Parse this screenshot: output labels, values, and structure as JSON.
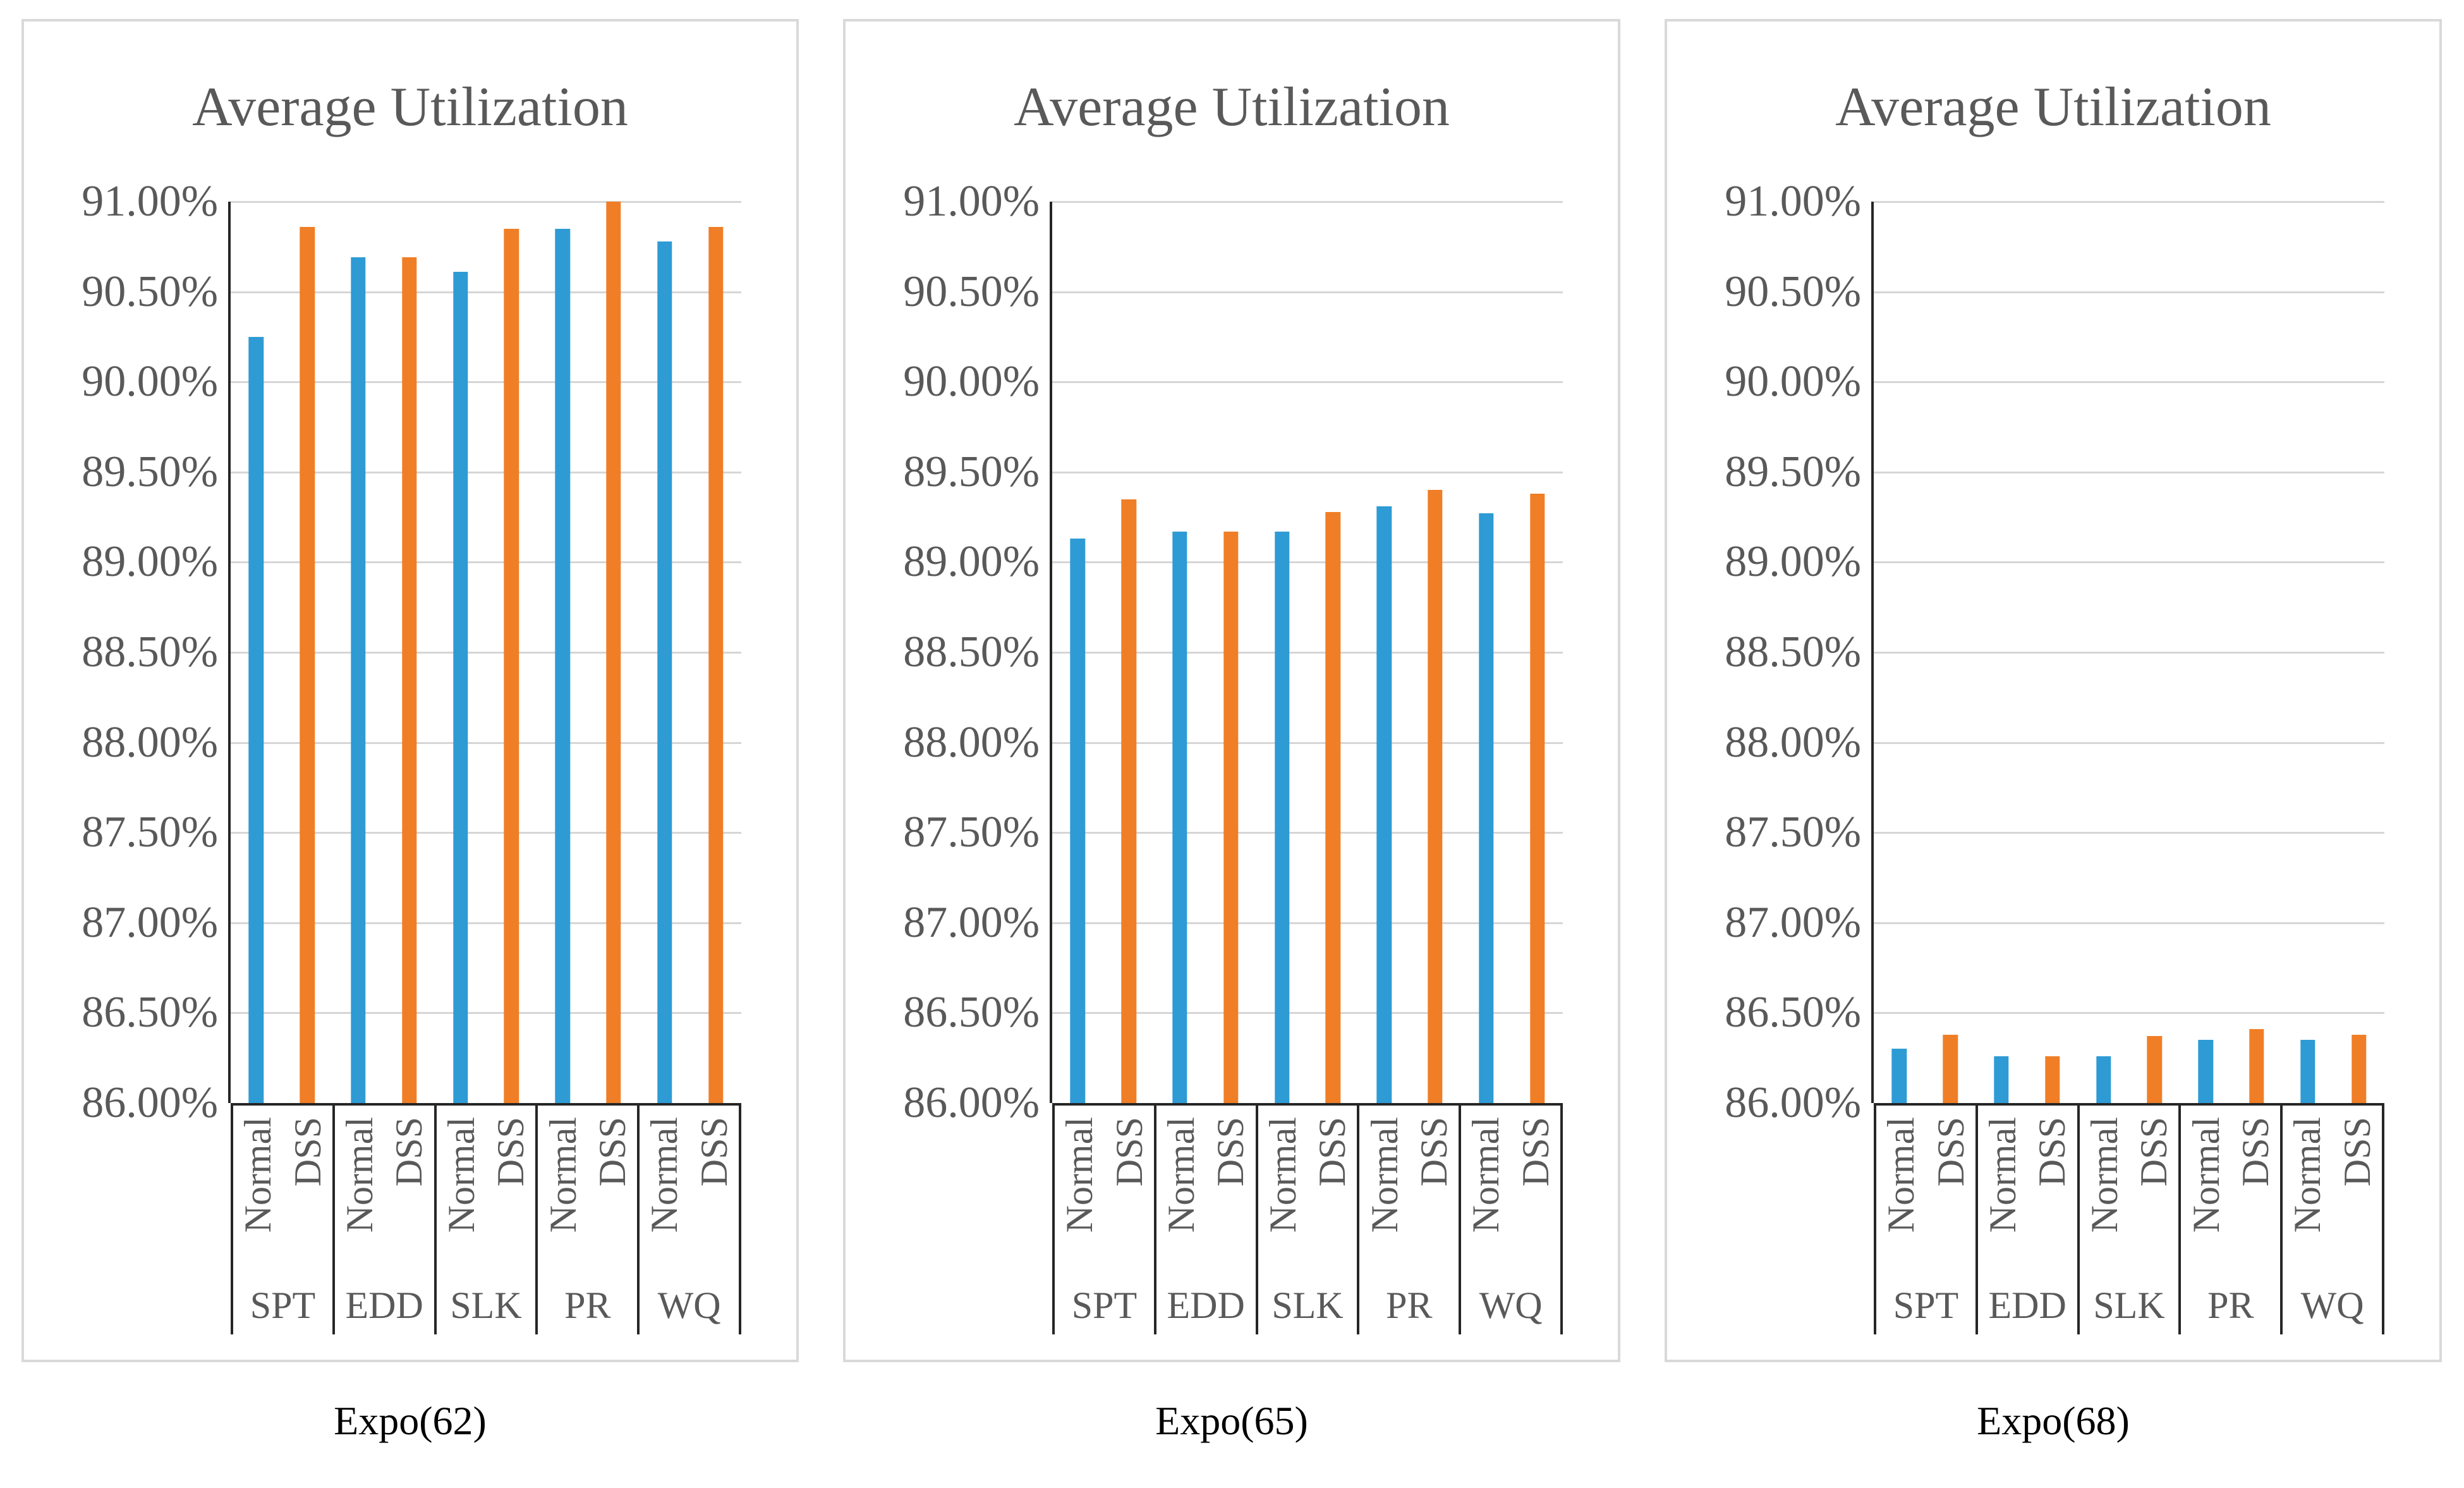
{
  "figure_background": "#ffffff",
  "panel_border_color": "#d9d9d9",
  "grid_color": "#d6d6d6",
  "axis_color": "#262626",
  "title_color": "#595959",
  "tick_color": "#595959",
  "series_labels": [
    "Normal",
    "DSS"
  ],
  "axis": {
    "ymin": 86.0,
    "ymax": 91.0,
    "tick_step": 0.5,
    "yticks": [
      "91.00%",
      "90.50%",
      "90.00%",
      "89.50%",
      "89.00%",
      "88.50%",
      "88.00%",
      "87.50%",
      "87.00%",
      "86.50%",
      "86.00%"
    ]
  },
  "chart_data": [
    {
      "type": "bar",
      "title": "Average Utilization",
      "caption": "Expo(62)",
      "categories": [
        "SPT",
        "EDD",
        "SLK",
        "PR",
        "WQ"
      ],
      "series": [
        {
          "name": "Normal",
          "color": "#2E9BD5",
          "values": [
            90.25,
            90.69,
            90.61,
            90.85,
            90.78
          ]
        },
        {
          "name": "DSS",
          "color": "#F07E26",
          "values": [
            90.86,
            90.69,
            90.85,
            91.0,
            90.86
          ]
        }
      ],
      "ylim": [
        86.0,
        91.0
      ],
      "grid": true,
      "legend": "none"
    },
    {
      "type": "bar",
      "title": "Average Utilization",
      "caption": "Expo(65)",
      "categories": [
        "SPT",
        "EDD",
        "SLK",
        "PR",
        "WQ"
      ],
      "series": [
        {
          "name": "Normal",
          "color": "#2E9BD5",
          "values": [
            89.13,
            89.17,
            89.17,
            89.31,
            89.27
          ]
        },
        {
          "name": "DSS",
          "color": "#F07E26",
          "values": [
            89.35,
            89.17,
            89.28,
            89.4,
            89.38
          ]
        }
      ],
      "ylim": [
        86.0,
        91.0
      ],
      "grid": true,
      "legend": "none"
    },
    {
      "type": "bar",
      "title": "Average Utilization",
      "caption": "Expo(68)",
      "categories": [
        "SPT",
        "EDD",
        "SLK",
        "PR",
        "WQ"
      ],
      "series": [
        {
          "name": "Normal",
          "color": "#2E9BD5",
          "values": [
            86.3,
            86.26,
            86.26,
            86.35,
            86.35
          ]
        },
        {
          "name": "DSS",
          "color": "#F07E26",
          "values": [
            86.38,
            86.26,
            86.37,
            86.41,
            86.38
          ]
        }
      ],
      "ylim": [
        86.0,
        91.0
      ],
      "grid": true,
      "legend": "none"
    }
  ]
}
